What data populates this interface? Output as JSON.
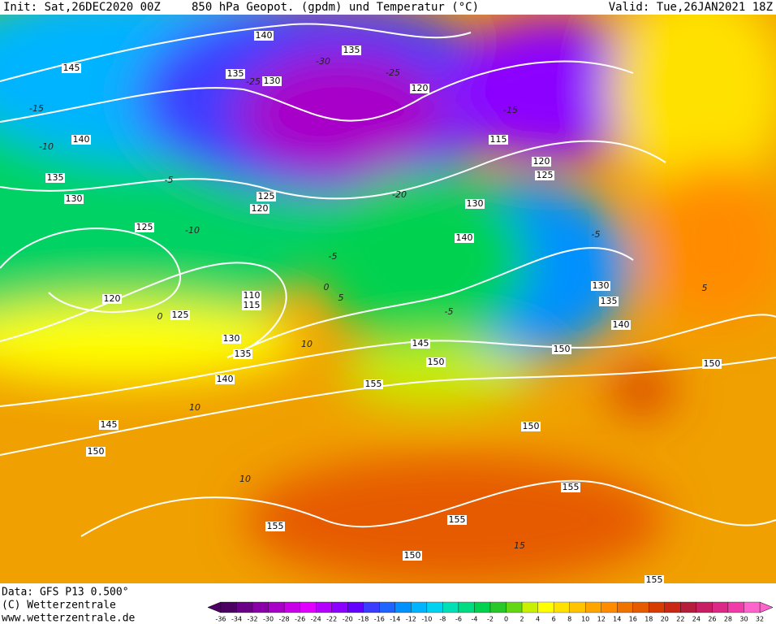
{
  "header": {
    "init": "Init: Sat,26DEC2020 00Z",
    "title": "850 hPa Geopot. (gpdm) und Temperatur (°C)",
    "valid": "Valid: Tue,26JAN2021 18Z"
  },
  "footer": {
    "data": "Data: GFS P13 0.500°",
    "copyright": "(C) Wetterzentrale",
    "url": "www.wetterzentrale.de"
  },
  "colorbar": {
    "labels": [
      -36,
      -34,
      -32,
      -30,
      -28,
      -26,
      -24,
      -22,
      -20,
      -18,
      -16,
      -14,
      -12,
      -10,
      -8,
      -6,
      -4,
      -2,
      0,
      2,
      4,
      6,
      8,
      10,
      12,
      14,
      16,
      18,
      20,
      22,
      24,
      26,
      28,
      30,
      32
    ],
    "colors": [
      "#4b0062",
      "#6a0085",
      "#8a00a8",
      "#a800c8",
      "#c800e8",
      "#e000ff",
      "#b400ff",
      "#8c00ff",
      "#6400ff",
      "#3c3cff",
      "#1e64ff",
      "#0090ff",
      "#00b4ff",
      "#00d2f0",
      "#00e0b4",
      "#00dc82",
      "#00d250",
      "#28c828",
      "#64d714",
      "#c8f000",
      "#ffff00",
      "#ffe100",
      "#ffc300",
      "#ffa500",
      "#ff8c00",
      "#f07300",
      "#e65a00",
      "#d73c00",
      "#c82814",
      "#b41e3c",
      "#c81e64",
      "#dc2886",
      "#f03ca8",
      "#ff64cc"
    ]
  },
  "geopotential_labels": [
    140,
    135,
    145,
    135,
    130,
    120,
    140,
    115,
    120,
    125,
    135,
    130,
    125,
    120,
    130,
    140,
    125,
    120,
    110,
    115,
    125,
    130,
    135,
    140,
    145,
    150,
    150,
    130,
    135,
    140,
    155,
    150,
    145,
    150,
    150,
    155,
    155,
    155,
    150,
    155
  ],
  "temperature_labels": [
    -15,
    -10,
    -5,
    -10,
    -25,
    -30,
    -25,
    -20,
    -15,
    -5,
    0,
    5,
    10,
    -5,
    5,
    10,
    10,
    15,
    -5,
    0
  ]
}
